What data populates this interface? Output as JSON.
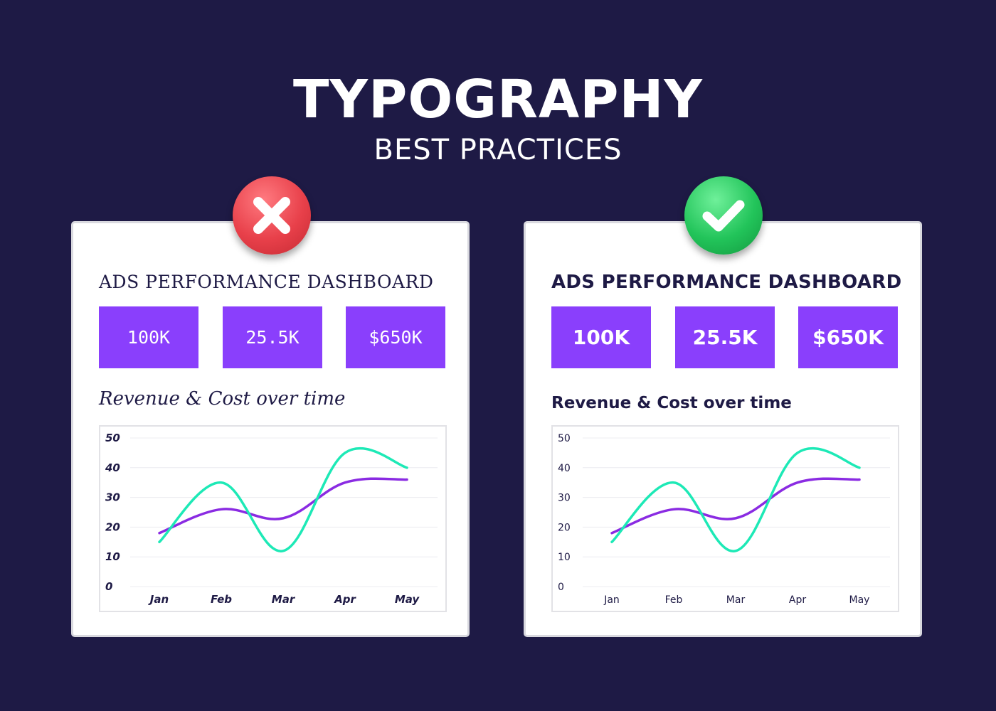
{
  "header": {
    "title": "TYPOGRAPHY",
    "subtitle": "BEST PRACTICES"
  },
  "colors": {
    "background": "#1e1a45",
    "kpi_fill": "#8a3ffc",
    "revenue_line": "#1de9b6",
    "cost_line": "#8a2be2",
    "bad_badge": "#e8404a",
    "good_badge": "#22c45a"
  },
  "bad_example": {
    "badge_icon": "cross-icon",
    "dashboard_title": "ADS PERFORMANCE DASHBOARD",
    "kpis": [
      "100K",
      "25.5K",
      "$650K"
    ],
    "chart_title": "Revenue & Cost over time"
  },
  "good_example": {
    "badge_icon": "check-icon",
    "dashboard_title": "ADS PERFORMANCE DASHBOARD",
    "kpis": [
      "100K",
      "25.5K",
      "$650K"
    ],
    "chart_title": "Revenue & Cost over time"
  },
  "chart_data": [
    {
      "type": "line",
      "title": "Revenue & Cost over time",
      "categories": [
        "Jan",
        "Feb",
        "Mar",
        "Apr",
        "May"
      ],
      "series": [
        {
          "values": [
            15,
            35,
            12,
            45,
            40
          ]
        },
        {
          "values": [
            18,
            26,
            23,
            35,
            36
          ]
        }
      ],
      "ylim": [
        0,
        50
      ],
      "yticks": [
        0,
        10,
        20,
        30,
        40,
        50
      ],
      "grid": true,
      "legend": "none"
    },
    {
      "type": "line",
      "title": "Revenue & Cost over time",
      "categories": [
        "Jan",
        "Feb",
        "Mar",
        "Apr",
        "May"
      ],
      "series": [
        {
          "values": [
            15,
            35,
            12,
            45,
            40
          ]
        },
        {
          "values": [
            18,
            26,
            23,
            35,
            36
          ]
        }
      ],
      "ylim": [
        0,
        50
      ],
      "yticks": [
        0,
        10,
        20,
        30,
        40,
        50
      ],
      "grid": true,
      "legend": "none"
    }
  ]
}
